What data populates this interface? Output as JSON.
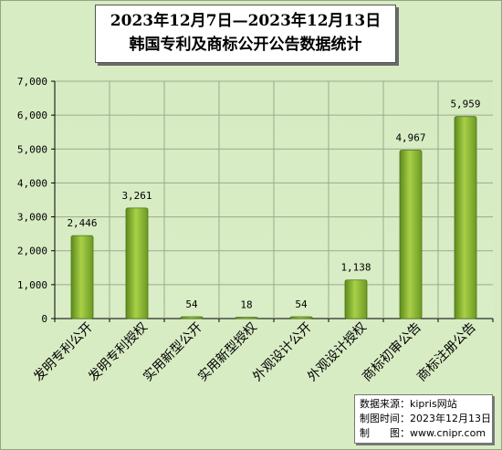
{
  "chart_data": {
    "type": "bar",
    "title_line1": "2023年12月7日—2023年12月13日",
    "title_line2": "韩国专利及商标公开公告数据统计",
    "categories": [
      "发明专利公开",
      "发明专利授权",
      "实用新型公开",
      "实用新型授权",
      "外观设计公开",
      "外观设计授权",
      "商标初审公告",
      "商标注册公告"
    ],
    "values": [
      2446,
      3261,
      54,
      18,
      54,
      1138,
      4967,
      5959
    ],
    "value_labels": [
      "2,446",
      "3,261",
      "54",
      "18",
      "54",
      "1,138",
      "4,967",
      "5,959"
    ],
    "ylim": [
      0,
      7000
    ],
    "yticks": [
      "0",
      "1,000",
      "2,000",
      "3,000",
      "4,000",
      "5,000",
      "6,000",
      "7,000"
    ],
    "grid": true,
    "bar_color": "#8ab630"
  },
  "source": {
    "line1": "数据来源：kipris网站",
    "line2": "制图时间：2023年12月13日",
    "line3": "制　　图：www.cnipr.com"
  }
}
